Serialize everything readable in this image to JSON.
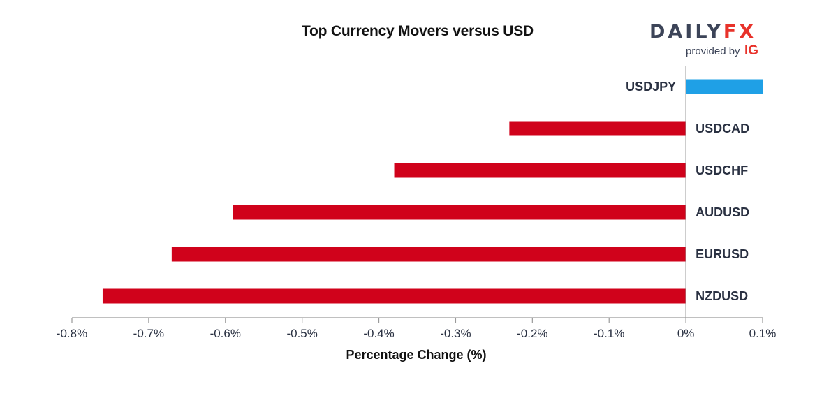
{
  "chart_data": {
    "type": "bar",
    "orientation": "horizontal",
    "title": "Top Currency Movers versus USD",
    "xlabel": "Percentage Change (%)",
    "ylabel": "",
    "categories": [
      "USDJPY",
      "USDCAD",
      "USDCHF",
      "AUDUSD",
      "EURUSD",
      "NZDUSD"
    ],
    "values": [
      0.1,
      -0.23,
      -0.38,
      -0.59,
      -0.67,
      -0.76
    ],
    "xlim": [
      -0.8,
      0.1
    ],
    "ticks": [
      "-0.8%",
      "-0.7%",
      "-0.6%",
      "-0.5%",
      "-0.4%",
      "-0.3%",
      "-0.2%",
      "-0.1%",
      "0%",
      "0.1%"
    ],
    "grid": false,
    "colors": {
      "positive": "#1fa0e6",
      "negative": "#d0021b",
      "axis": "#9a9a9a"
    }
  },
  "branding": {
    "logo_daily": "DAILY",
    "logo_fx": "FX",
    "provided_by": "provided by",
    "ig": "IG"
  }
}
